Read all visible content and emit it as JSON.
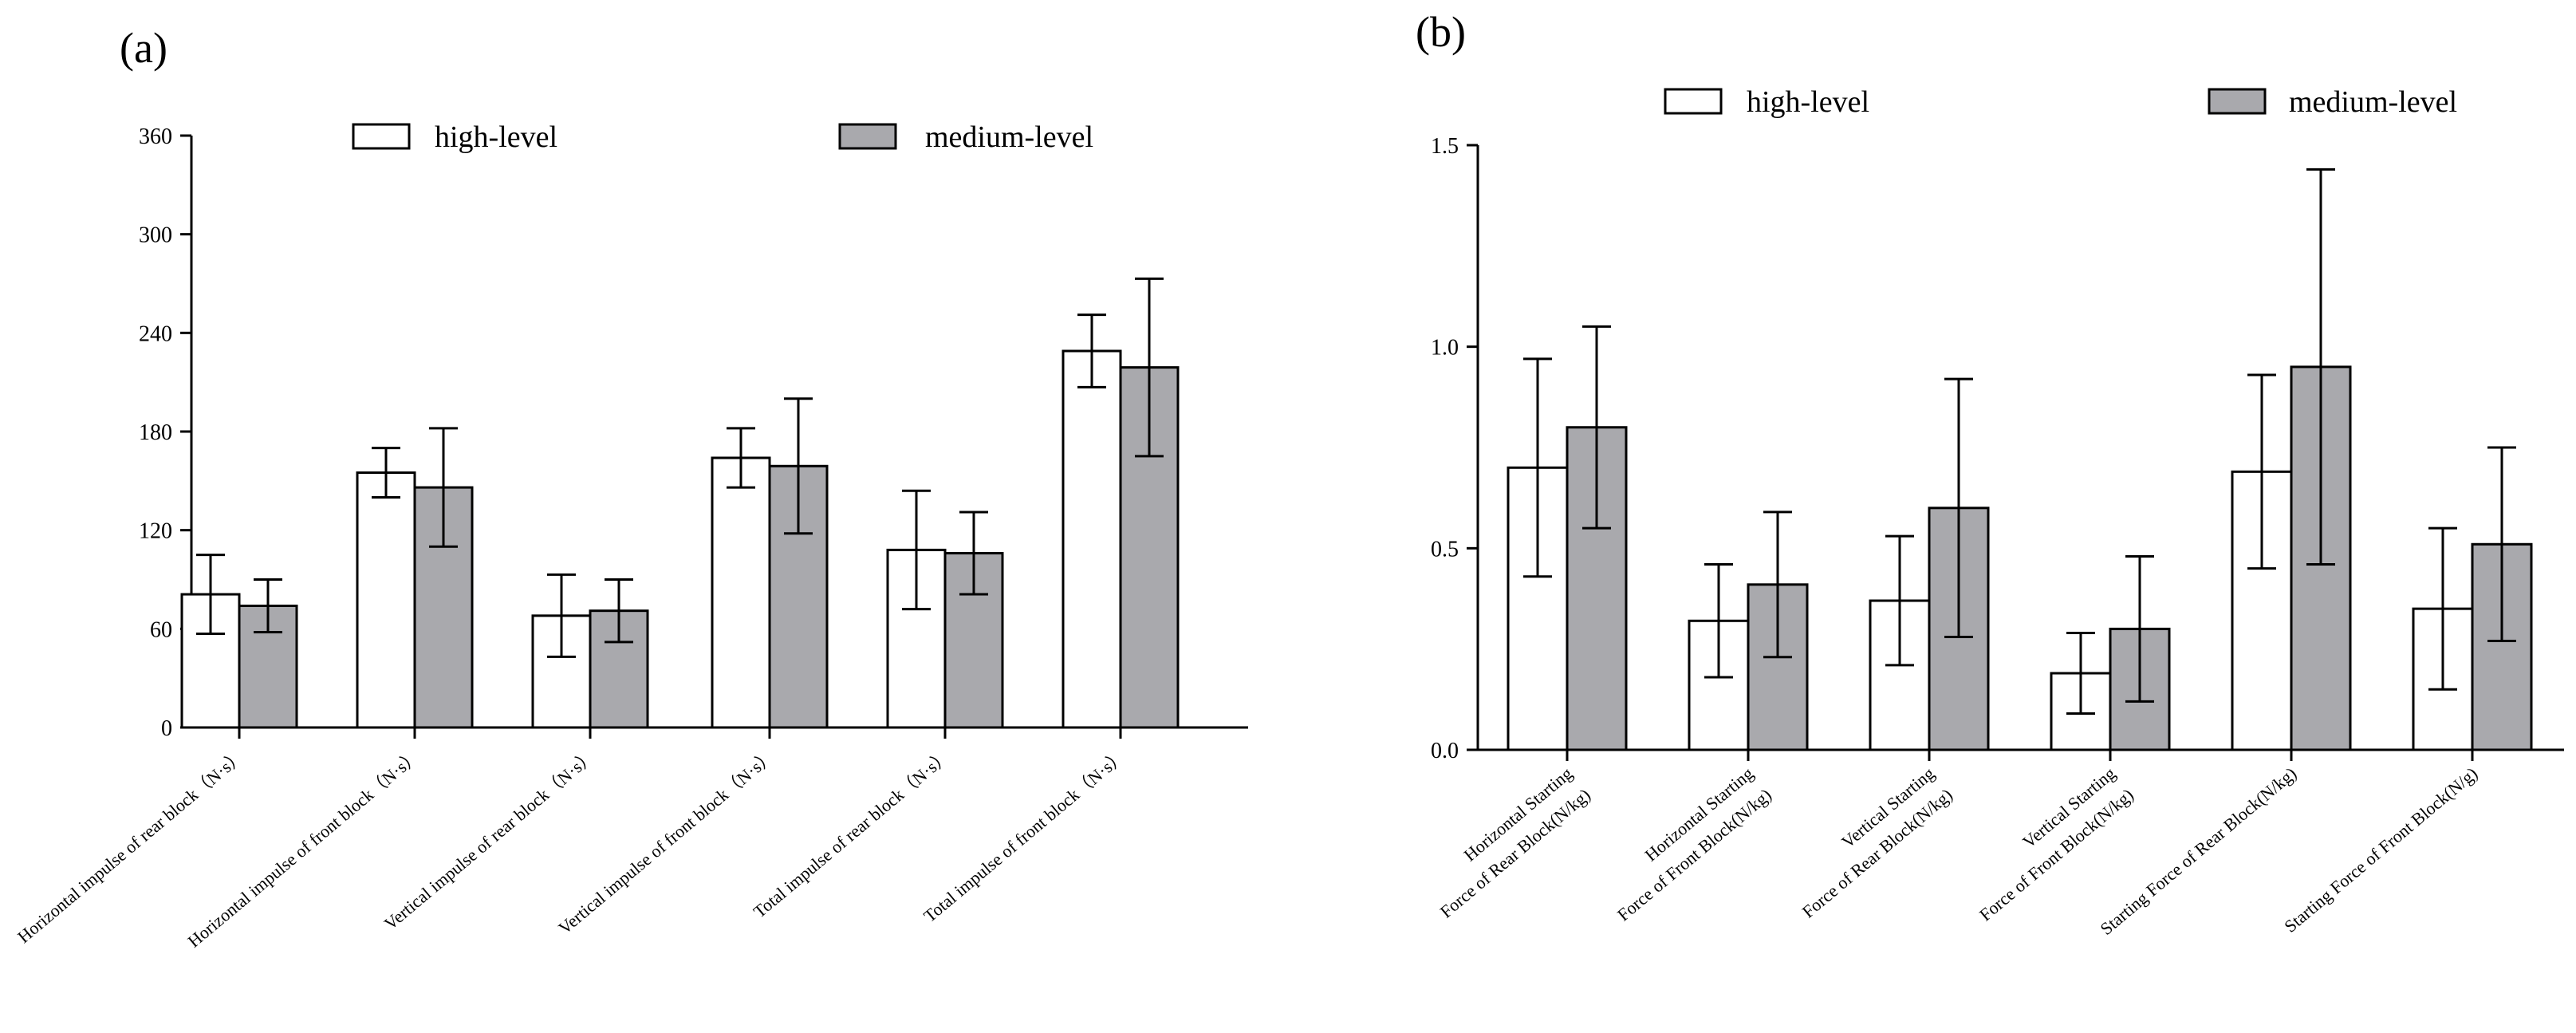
{
  "chart_data": [
    {
      "panel_label": "(a)",
      "type": "bar",
      "categories": [
        "Horizontal impulse of rear block（N·s）",
        "Horizontal impulse of front block（N·s）",
        "Vertical impulse of rear block（N·s）",
        "Vertical impulse of front block（N·s）",
        "Total impulse of rear block（N·s）",
        "Total impulse of front block（N·s）"
      ],
      "series": [
        {
          "name": "high-level",
          "color": "#ffffff",
          "values": [
            81,
            155,
            68,
            164,
            108,
            229
          ],
          "errors": [
            24,
            15,
            25,
            18,
            36,
            22
          ]
        },
        {
          "name": "medium-level",
          "color": "#a9a9ad",
          "values": [
            74,
            146,
            71,
            159,
            106,
            219
          ],
          "errors": [
            16,
            36,
            19,
            41,
            25,
            54
          ]
        }
      ],
      "ylim": [
        0,
        360
      ],
      "yticks": [
        "0",
        "60",
        "120",
        "180",
        "240",
        "300",
        "360"
      ],
      "legend": "top-center"
    },
    {
      "panel_label": "(b)",
      "type": "bar",
      "categories": [
        [
          "Horizontal Starting",
          "Force of Rear Block(N/kg)"
        ],
        [
          "Horizontal Starting",
          "Force of Front Block(N/kg)"
        ],
        [
          "Vertical Starting",
          "Force of Rear Block(N/kg)"
        ],
        [
          "Vertical Starting",
          "Force of Front Block(N/kg)"
        ],
        [
          "Starting Force of Rear Block(N/kg)"
        ],
        [
          "Starting Force of Front Block(N/g)"
        ]
      ],
      "series": [
        {
          "name": "high-level",
          "color": "#ffffff",
          "values": [
            0.7,
            0.32,
            0.37,
            0.19,
            0.69,
            0.35
          ],
          "errors": [
            0.27,
            0.14,
            0.16,
            0.1,
            0.24,
            0.2
          ]
        },
        {
          "name": "medium-level",
          "color": "#a9a9ad",
          "values": [
            0.8,
            0.41,
            0.6,
            0.3,
            0.95,
            0.51
          ],
          "errors": [
            0.25,
            0.18,
            0.32,
            0.18,
            0.49,
            0.24
          ]
        }
      ],
      "ylim": [
        0,
        1.5
      ],
      "yticks": [
        "0.0",
        "0.5",
        "1.0",
        "1.5"
      ],
      "legend": "top-center"
    }
  ]
}
